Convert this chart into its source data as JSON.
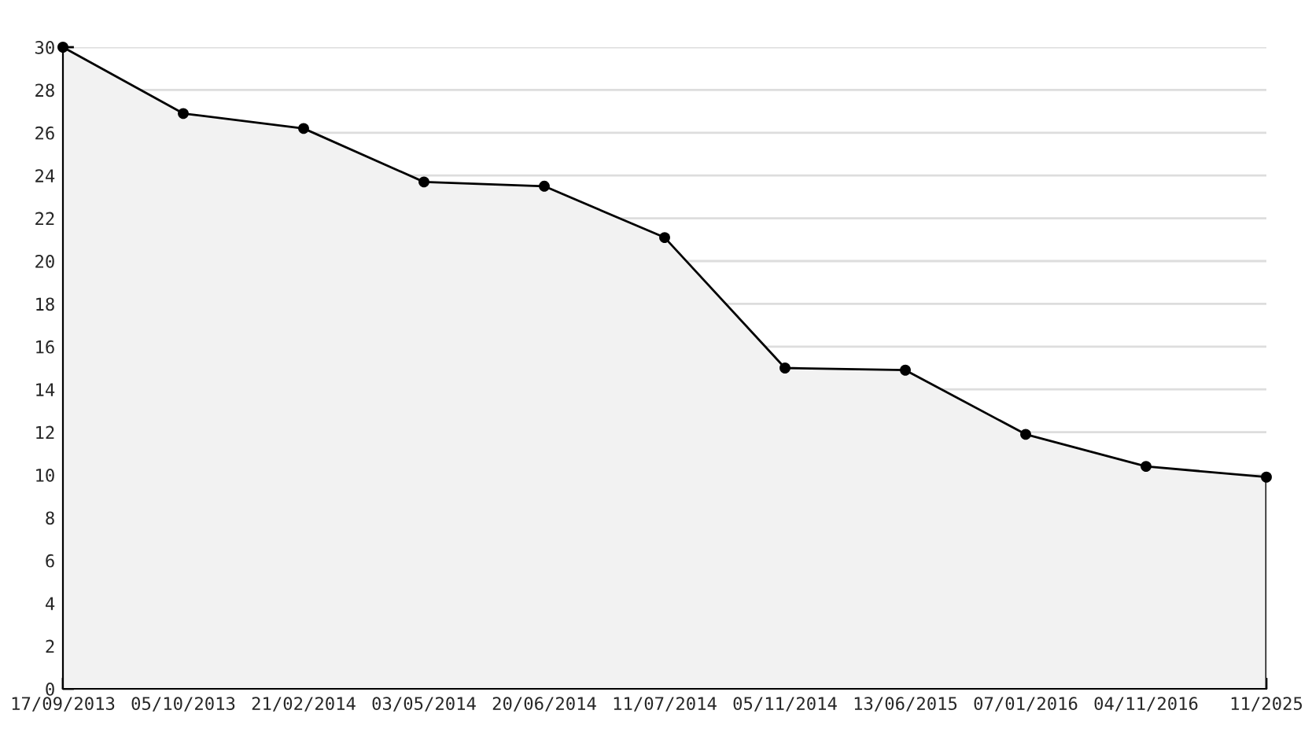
{
  "chart_data": {
    "type": "area",
    "categories": [
      "17/09/2013",
      "05/10/2013",
      "21/02/2014",
      "03/05/2014",
      "20/06/2014",
      "11/07/2014",
      "05/11/2014",
      "13/06/2015",
      "07/01/2016",
      "04/11/2016",
      "11/2025"
    ],
    "series": [
      {
        "color": "#000000",
        "values": [
          30,
          26.9,
          26.2,
          23.7,
          23.5,
          21.1,
          15.0,
          14.9,
          11.9,
          10.4,
          9.9
        ]
      }
    ],
    "ylim": [
      0,
      30
    ],
    "yticks": [
      0,
      {
        "value": 1,
        "label": null
      },
      2,
      {
        "value": 3,
        "label": null
      },
      4,
      {
        "value": 5,
        "label": null
      },
      6,
      {
        "value": 7,
        "label": null
      },
      8,
      {
        "value": 9,
        "label": null
      },
      10,
      {
        "value": 11,
        "label": null
      },
      12,
      {
        "value": 13,
        "label": null
      },
      14,
      {
        "value": 15,
        "label": null
      },
      16,
      {
        "value": 17,
        "label": null
      },
      18,
      {
        "value": 19,
        "label": null
      },
      20,
      {
        "value": 21,
        "label": null
      },
      22,
      {
        "value": 23,
        "label": null
      },
      24,
      {
        "value": 25,
        "label": null
      },
      26,
      {
        "value": 27,
        "label": null
      },
      28,
      {
        "value": 29,
        "label": null
      },
      30
    ],
    "grid": "y",
    "marker": "circle",
    "line_style": "solid",
    "legend": false
  }
}
